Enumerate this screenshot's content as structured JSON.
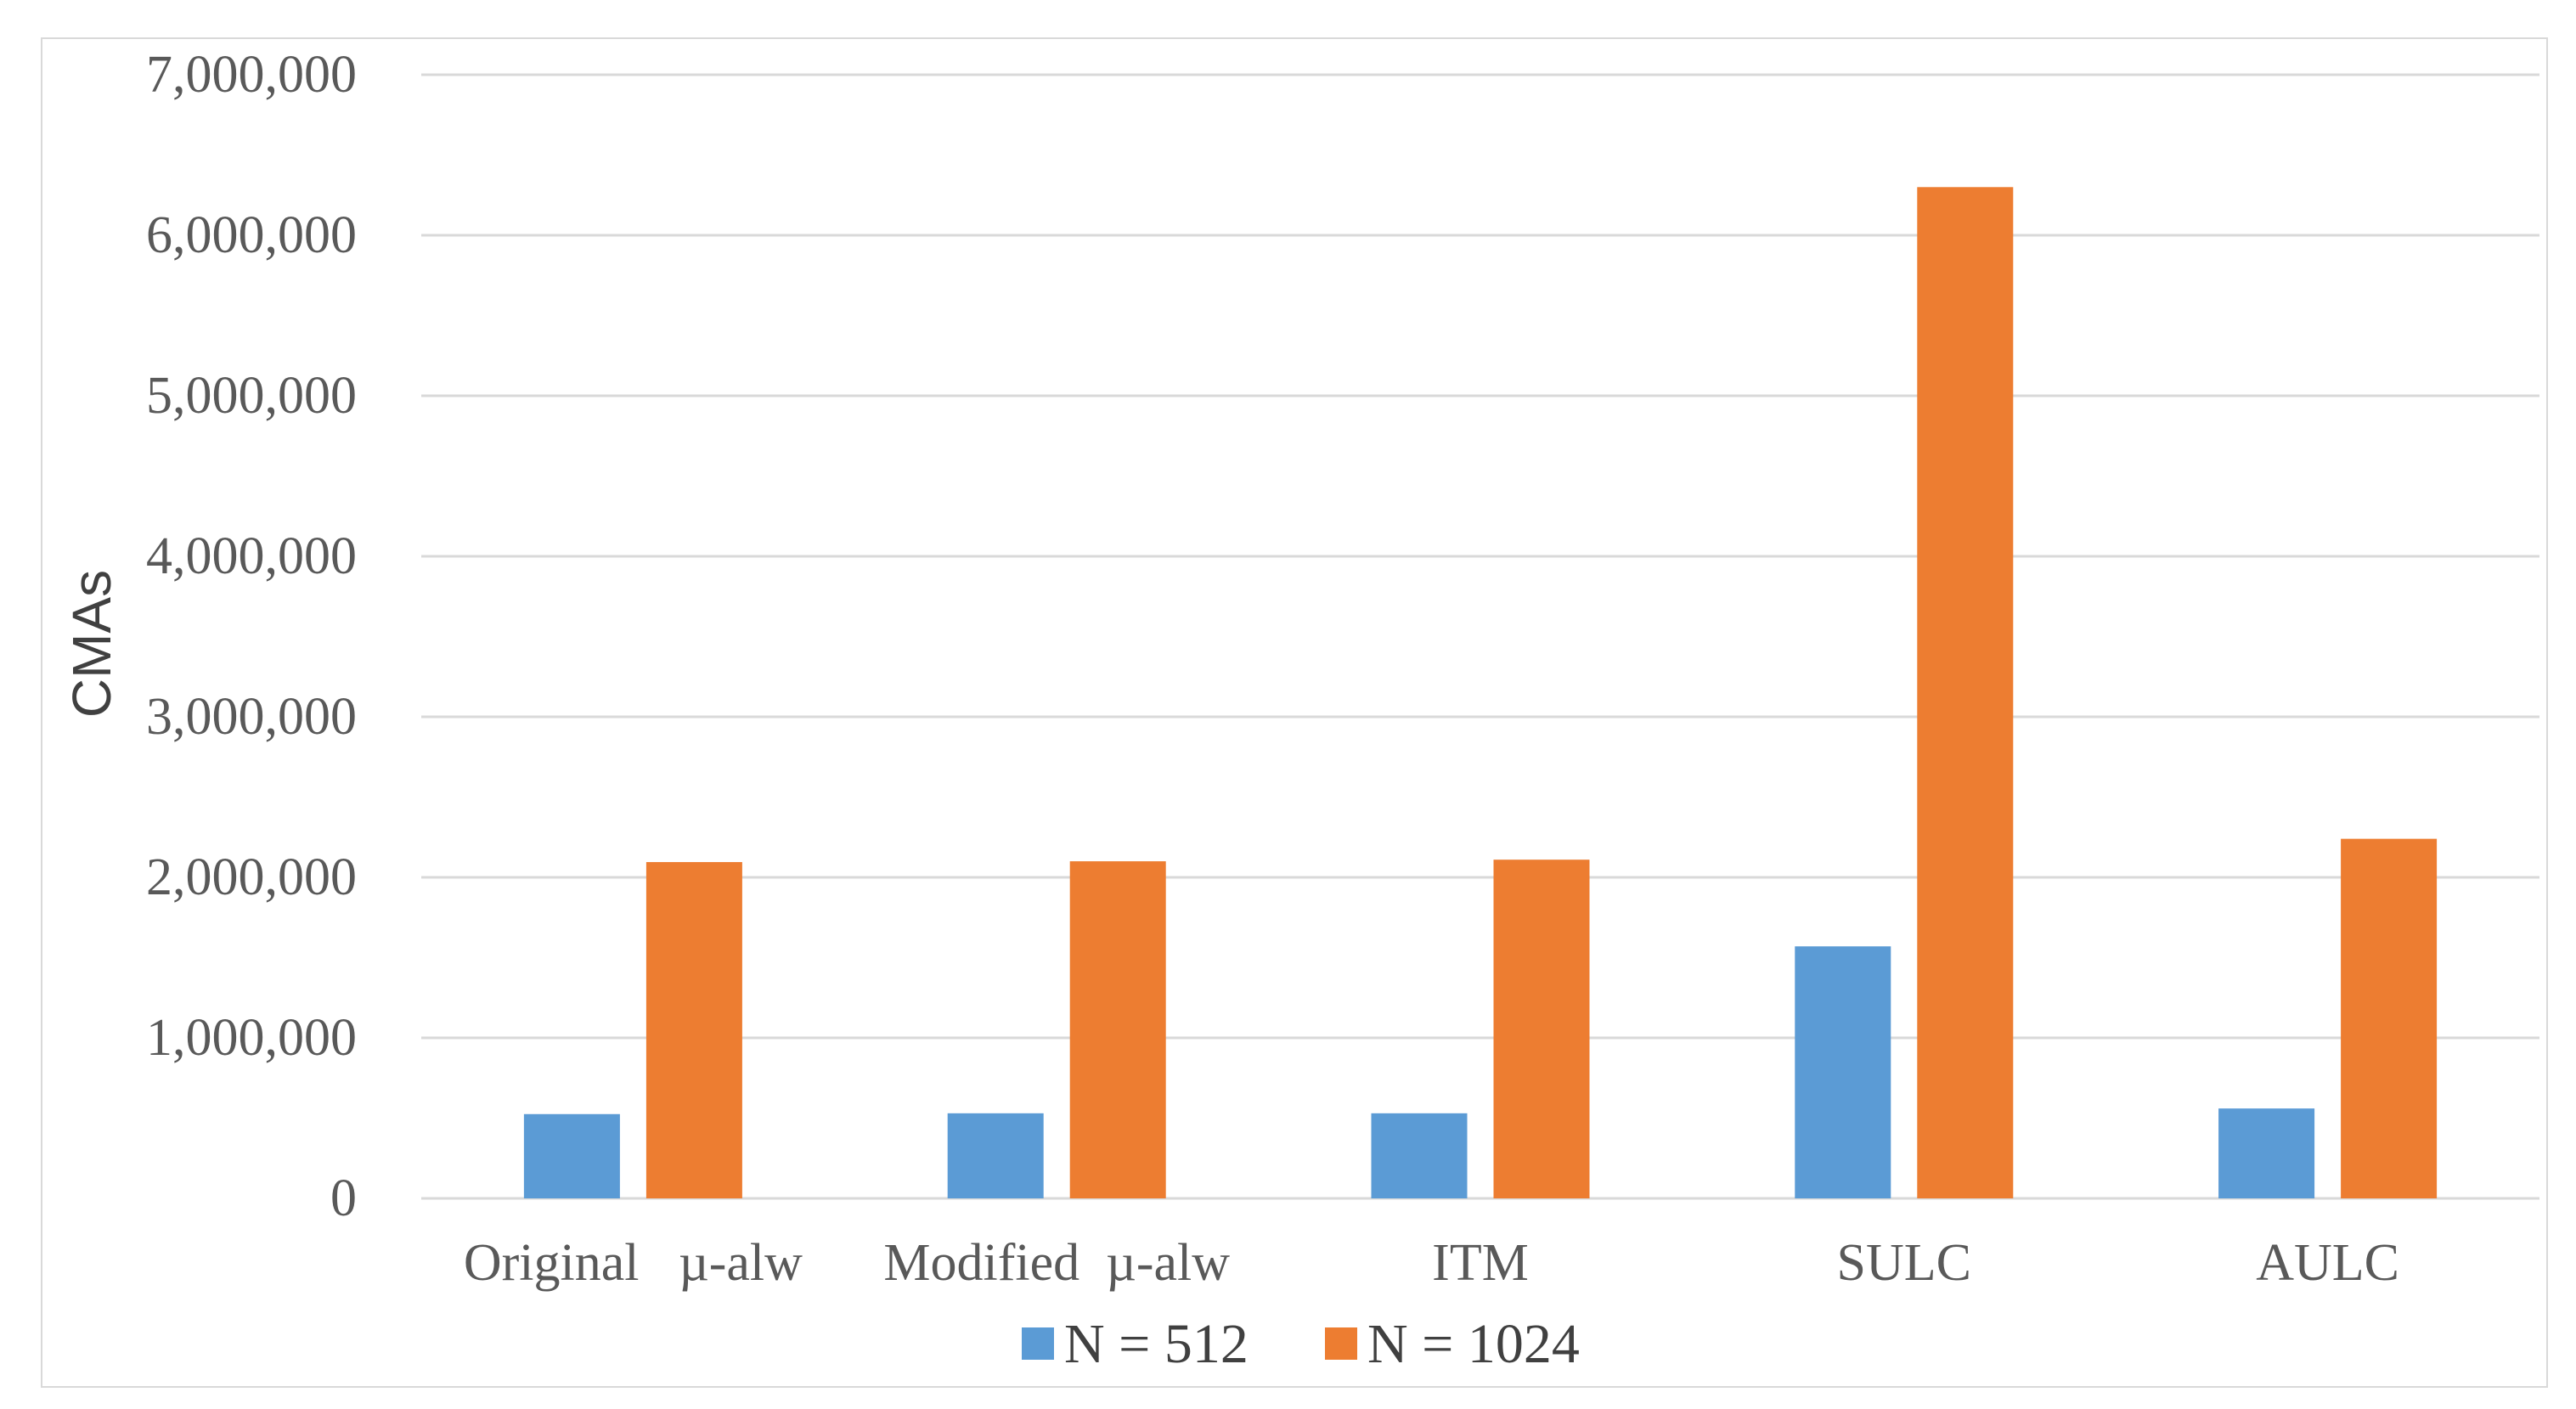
{
  "chart_data": {
    "type": "bar",
    "title": "",
    "xlabel": "",
    "ylabel": "CMAs",
    "ylim": [
      0,
      7000000
    ],
    "yticks": [
      0,
      1000000,
      2000000,
      3000000,
      4000000,
      5000000,
      6000000,
      7000000
    ],
    "ytick_labels": [
      "0",
      "1,000,000",
      "2,000,000",
      "3,000,000",
      "4,000,000",
      "5,000,000",
      "6,000,000",
      "7,000,000"
    ],
    "grid": true,
    "legend_position": "bottom",
    "categories": [
      "Original   µ-alw",
      "Modified  µ-alw",
      "ITM",
      "SULC",
      "AULC"
    ],
    "series": [
      {
        "name": "N = 512",
        "color": "#5b9bd5",
        "values": [
          525000,
          530000,
          530000,
          1570000,
          560000
        ]
      },
      {
        "name": "N = 1024",
        "color": "#ed7d31",
        "values": [
          2095000,
          2100000,
          2110000,
          6300000,
          2240000
        ]
      }
    ]
  },
  "colors": {
    "gridline": "#d9d9d9",
    "frame": "#d9d9d9"
  }
}
